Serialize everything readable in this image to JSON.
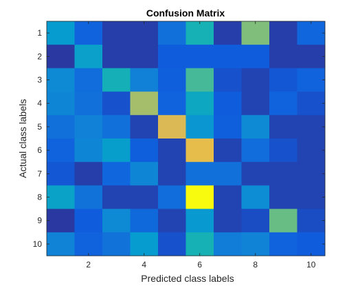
{
  "chart_data": {
    "type": "heatmap",
    "title": "Confusion Matrix",
    "xlabel": "Predicted class labels",
    "ylabel": "Actual class labels",
    "x_tick_labels": [
      "2",
      "4",
      "6",
      "8",
      "10"
    ],
    "y_tick_labels": [
      "1",
      "2",
      "3",
      "4",
      "5",
      "6",
      "7",
      "8",
      "9",
      "10"
    ],
    "xlim": [
      0.5,
      10.5
    ],
    "ylim": [
      0.5,
      10.5
    ],
    "y_reversed": true,
    "colormap": "parula",
    "clim": [
      0,
      1
    ],
    "values": [
      [
        0.3,
        0.12,
        0.04,
        0.04,
        0.16,
        0.4,
        0.04,
        0.55,
        0.04,
        0.13
      ],
      [
        0.03,
        0.32,
        0.04,
        0.04,
        0.1,
        0.1,
        0.1,
        0.1,
        0.04,
        0.04
      ],
      [
        0.24,
        0.15,
        0.39,
        0.21,
        0.11,
        0.47,
        0.08,
        0.05,
        0.09,
        0.12
      ],
      [
        0.23,
        0.16,
        0.08,
        0.6,
        0.12,
        0.35,
        0.1,
        0.05,
        0.12,
        0.08
      ],
      [
        0.16,
        0.21,
        0.16,
        0.05,
        0.69,
        0.28,
        0.11,
        0.24,
        0.05,
        0.05
      ],
      [
        0.12,
        0.23,
        0.31,
        0.11,
        0.05,
        0.72,
        0.05,
        0.15,
        0.08,
        0.05
      ],
      [
        0.09,
        0.04,
        0.13,
        0.23,
        0.05,
        0.16,
        0.16,
        0.05,
        0.05,
        0.05
      ],
      [
        0.33,
        0.17,
        0.05,
        0.05,
        0.15,
        1.0,
        0.05,
        0.25,
        0.05,
        0.05
      ],
      [
        0.03,
        0.1,
        0.24,
        0.14,
        0.05,
        0.29,
        0.05,
        0.07,
        0.52,
        0.07
      ],
      [
        0.22,
        0.12,
        0.17,
        0.3,
        0.08,
        0.4,
        0.2,
        0.22,
        0.12,
        0.1
      ]
    ]
  }
}
